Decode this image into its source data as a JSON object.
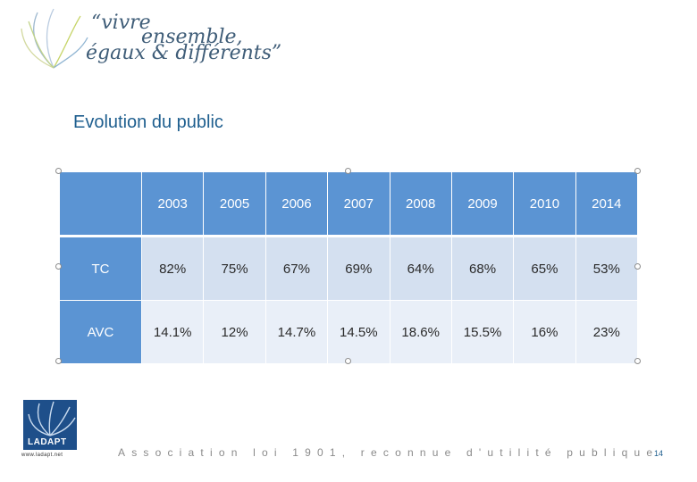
{
  "header": {
    "slogan_line1": "“vivre",
    "slogan_line2": "ensemble,",
    "slogan_line3": "égaux & différents”"
  },
  "section_title": "Evolution du public",
  "table": {
    "years": [
      "2003",
      "2005",
      "2006",
      "2007",
      "2008",
      "2009",
      "2010",
      "2014"
    ],
    "rows": [
      {
        "label": "TC",
        "values": [
          "82%",
          "75%",
          "67%",
          "69%",
          "64%",
          "68%",
          "65%",
          "53%"
        ]
      },
      {
        "label": "AVC",
        "values": [
          "14.1%",
          "12%",
          "14.7%",
          "14.5%",
          "18.6%",
          "15.5%",
          "16%",
          "23%"
        ]
      }
    ]
  },
  "footer": {
    "logo_text": "LADAPT",
    "url": "www.ladapt.net",
    "tagline": "Association loi 1901, reconnue d'utilité publique",
    "page_number": "14"
  },
  "colors": {
    "header_blue": "#5b94d3",
    "row1_bg": "#d4e0f0",
    "row2_bg": "#e9eff8",
    "title_blue": "#1f5f8f"
  }
}
